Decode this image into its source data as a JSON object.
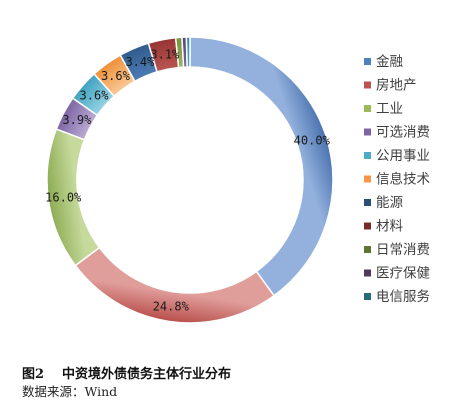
{
  "figure": {
    "number": "图2",
    "title": "中资境外债债务主体行业分布",
    "source": "数据来源：Wind"
  },
  "chart_data": {
    "type": "pie",
    "style": "donut",
    "legend_position": "right",
    "start": "12 o'clock",
    "direction": "clockwise",
    "unit": "%",
    "categories": [
      "金融",
      "房地产",
      "工业",
      "可选消费",
      "公用事业",
      "信息技术",
      "能源",
      "材料",
      "日常消费",
      "医疗保健",
      "电信服务"
    ],
    "values": [
      40.0,
      24.8,
      16.0,
      3.9,
      3.6,
      3.6,
      3.4,
      3.1,
      0.7,
      0.5,
      0.4
    ],
    "labels": [
      "40.0%",
      "24.8%",
      "16.0%",
      "3.9%",
      "3.6%",
      "3.6%",
      "3.4%",
      "3.1%",
      "",
      "",
      ""
    ],
    "colors": [
      [
        "#4a72b0",
        "#93b1dc"
      ],
      [
        "#b94e4b",
        "#e09e9b"
      ],
      [
        "#8cab51",
        "#c6da9d"
      ],
      [
        "#7b64a1",
        "#bcaad4"
      ],
      [
        "#3ea2bf",
        "#97d2e4"
      ],
      [
        "#ef9038",
        "#f9c896"
      ],
      [
        "#2f5c8e",
        "#4c7cb5"
      ],
      [
        "#963533",
        "#b85552"
      ],
      [
        "#73913a",
        "#99b55e"
      ],
      [
        "#5a4378",
        "#7d66a0"
      ],
      [
        "#2c8aa4",
        "#4fa9c3"
      ]
    ],
    "legend_swatches": [
      "#4f81bd",
      "#c0504d",
      "#9bbb59",
      "#8064a2",
      "#4bacc6",
      "#f79646",
      "#2c4d75",
      "#772c2a",
      "#5f7530",
      "#4d3b62",
      "#276a7c"
    ]
  }
}
